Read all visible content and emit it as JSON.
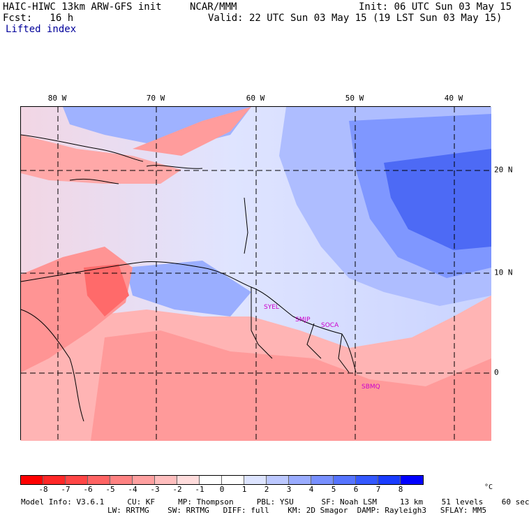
{
  "header": {
    "model": "HAIC-HIWC 13km ARW-GFS init",
    "org": "NCAR/MMM",
    "init": "Init: 06 UTC Sun 03 May 15",
    "fcst": "Fcst:   16 h",
    "valid": "Valid: 22 UTC Sun 03 May 15 (19 LST Sun 03 May 15)",
    "field": "Lifted index"
  },
  "axes": {
    "lon_labels": [
      "80 W",
      "70 W",
      "60 W",
      "50 W",
      "40 W"
    ],
    "lat_labels": [
      "20 N",
      "10 N",
      "0"
    ]
  },
  "stations": [
    "SYEL",
    "SMJP",
    "SOCA",
    "SBMQ"
  ],
  "colorbar": {
    "labels": [
      "-8",
      "-7",
      "-6",
      "-5",
      "-4",
      "-3",
      "-2",
      "-1",
      "0",
      "1",
      "2",
      "3",
      "4",
      "5",
      "6",
      "7",
      "8"
    ],
    "unit": "°C",
    "colors": [
      "#ff0000",
      "#ff2828",
      "#ff4646",
      "#ff6464",
      "#ff8282",
      "#ffa0a0",
      "#ffbebe",
      "#ffdcdc",
      "#ffffff",
      "#ffffff",
      "#dde4ff",
      "#bcc8ff",
      "#9aacff",
      "#7890ff",
      "#5674ff",
      "#3458ff",
      "#1a3cff",
      "#0000ff"
    ]
  },
  "footer": {
    "line1": "Model Info: V3.6.1     CU: KF     MP: Thompson     PBL: YSU      SF: Noah LSM     13 km    51 levels    60 sec",
    "line2": "LW: RRTMG    SW: RRTMG   DIFF: full    KM: 2D Smagor  DAMP: Rayleigh3   SFLAY: MM5"
  }
}
